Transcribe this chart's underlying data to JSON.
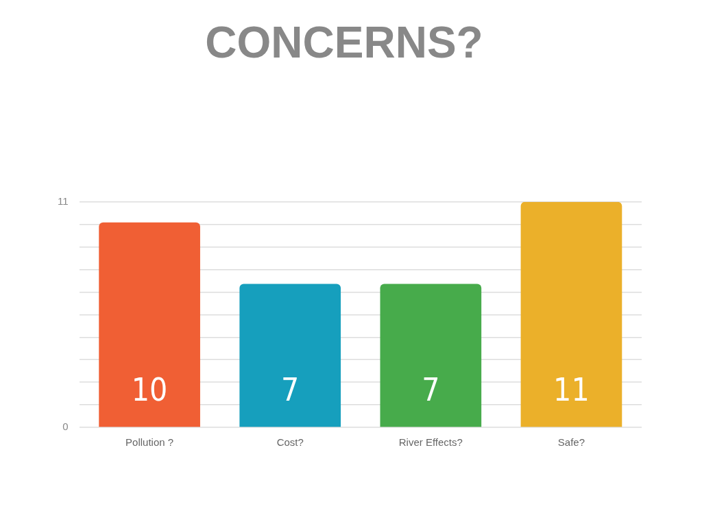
{
  "chart_data": {
    "type": "bar",
    "title": "CONCERNS?",
    "categories": [
      "Pollution ?",
      "Cost?",
      "River Effects?",
      "Safe?"
    ],
    "values": [
      10,
      7,
      7,
      11
    ],
    "colors": [
      "#f05f34",
      "#169fbd",
      "#47ab4b",
      "#ebb02a"
    ],
    "ylim": [
      0,
      11
    ],
    "yticks": [
      0,
      {
        "value": 1.1,
        "label": null
      },
      {
        "value": 2.2,
        "label": null
      },
      {
        "value": 3.3,
        "label": null
      },
      {
        "value": 4.4,
        "label": null
      },
      {
        "value": 5.5,
        "label": null
      },
      {
        "value": 6.6,
        "label": null
      },
      {
        "value": 7.7,
        "label": null
      },
      {
        "value": 8.8,
        "label": null
      },
      {
        "value": 9.9,
        "label": null
      },
      11
    ],
    "grid": "y",
    "legend": false,
    "data_labels": true
  }
}
